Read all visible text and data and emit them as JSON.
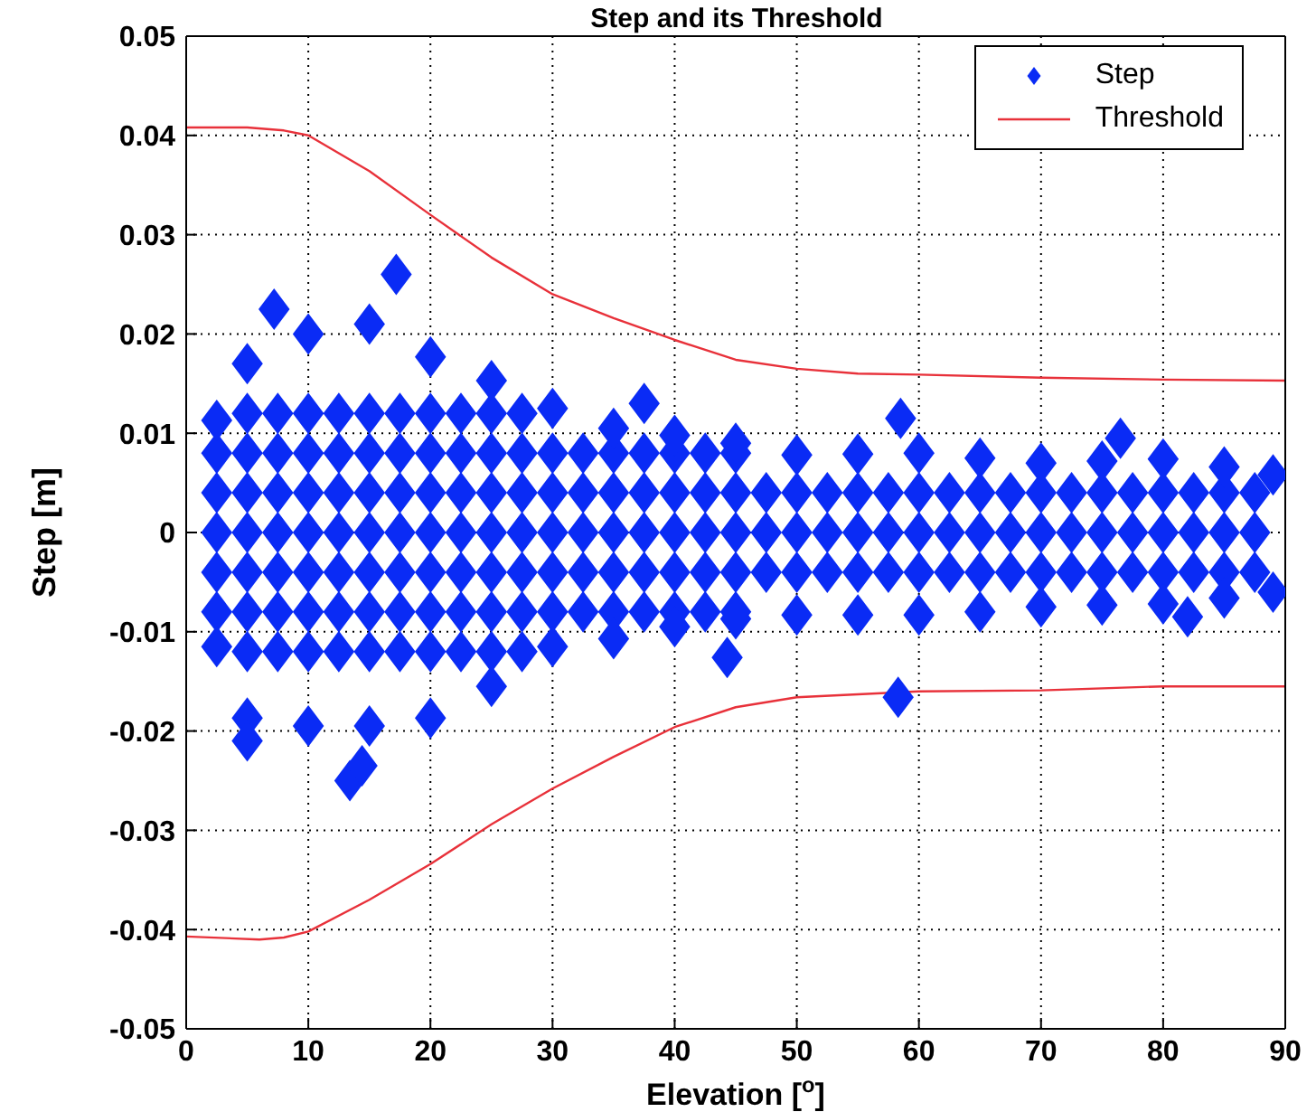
{
  "chart_data": {
    "type": "scatter",
    "title": "Step and its Threshold",
    "xlabel": "Elevation [$^{o}$]",
    "ylabel": "Step [m]",
    "xlim": [
      0,
      90
    ],
    "xticks": [
      0,
      10,
      20,
      30,
      40,
      50,
      60,
      70,
      80,
      90
    ],
    "ylim": [
      -0.05,
      0.05
    ],
    "yticks": [
      -0.05,
      -0.04,
      -0.03,
      -0.02,
      -0.01,
      0,
      0.01,
      0.02,
      0.03,
      0.04,
      0.05
    ],
    "grid": true,
    "legend": "top right",
    "series": [
      {
        "name": "Step",
        "marker": "diamond",
        "color": "#0a2bf5",
        "x": [
          5,
          7.5,
          10,
          12.5,
          15,
          17.5,
          20,
          22.5,
          25,
          27.5,
          2.5,
          5,
          7.5,
          10,
          12.5,
          15,
          17.5,
          20,
          22.5,
          25,
          27.5,
          30,
          32.5,
          35,
          37.5,
          40,
          42.5,
          45,
          2.5,
          5,
          7.5,
          10,
          12.5,
          15,
          17.5,
          20,
          22.5,
          25,
          27.5,
          30,
          32.5,
          35,
          37.5,
          40,
          42.5,
          45,
          47.5,
          50,
          52.5,
          55,
          57.5,
          60,
          62.5,
          65,
          67.5,
          70,
          72.5,
          75,
          77.5,
          80,
          82.5,
          85,
          87.5,
          2.5,
          5,
          7.5,
          10,
          12.5,
          15,
          17.5,
          20,
          22.5,
          25,
          27.5,
          30,
          32.5,
          35,
          37.5,
          40,
          42.5,
          45,
          47.5,
          50,
          52.5,
          55,
          57.5,
          60,
          62.5,
          65,
          67.5,
          70,
          72.5,
          75,
          77.5,
          80,
          82.5,
          85,
          87.5,
          2.5,
          5,
          7.5,
          10,
          12.5,
          15,
          17.5,
          20,
          22.5,
          25,
          27.5,
          30,
          32.5,
          35,
          37.5,
          40,
          42.5,
          45,
          47.5,
          50,
          52.5,
          55,
          57.5,
          60,
          62.5,
          65,
          67.5,
          70,
          72.5,
          75,
          77.5,
          80,
          82.5,
          85,
          87.5,
          2.5,
          5,
          7.5,
          10,
          12.5,
          15,
          17.5,
          20,
          22.5,
          25,
          27.5,
          30,
          32.5,
          35,
          37.5,
          40,
          42.5,
          45,
          5,
          7.5,
          10,
          12.5,
          15,
          17.5,
          20,
          22.5,
          25,
          27.5,
          2.5,
          5,
          10,
          15,
          20,
          25,
          30,
          35,
          40,
          45,
          50,
          55,
          60,
          65,
          70,
          75,
          80,
          85,
          89,
          2.5,
          5,
          10,
          15,
          20,
          25,
          30,
          35,
          40,
          45,
          50,
          55,
          60,
          65,
          70,
          75,
          80,
          85,
          89,
          17.2,
          7.2,
          37.5,
          58.5,
          76.5,
          13.4,
          14.4,
          5,
          44.3,
          58.3,
          82
        ],
        "values": [
          0.012,
          0.012,
          0.012,
          0.012,
          0.012,
          0.012,
          0.012,
          0.012,
          0.012,
          0.012,
          0.008,
          0.008,
          0.008,
          0.008,
          0.008,
          0.008,
          0.008,
          0.008,
          0.008,
          0.008,
          0.008,
          0.008,
          0.008,
          0.008,
          0.008,
          0.008,
          0.008,
          0.008,
          0.004,
          0.004,
          0.004,
          0.004,
          0.004,
          0.004,
          0.004,
          0.004,
          0.004,
          0.004,
          0.004,
          0.004,
          0.004,
          0.004,
          0.004,
          0.004,
          0.004,
          0.004,
          0.004,
          0.004,
          0.004,
          0.004,
          0.004,
          0.004,
          0.004,
          0.004,
          0.004,
          0.004,
          0.004,
          0.004,
          0.004,
          0.004,
          0.004,
          0.004,
          0.004,
          0,
          0,
          0,
          0,
          0,
          0,
          0,
          0,
          0,
          0,
          0,
          0,
          0,
          0,
          0,
          0,
          0,
          0,
          0,
          0,
          0,
          0,
          0,
          0,
          0,
          0,
          0,
          0,
          0,
          0,
          0,
          0,
          0,
          0,
          0,
          -0.004,
          -0.004,
          -0.004,
          -0.004,
          -0.004,
          -0.004,
          -0.004,
          -0.004,
          -0.004,
          -0.004,
          -0.004,
          -0.004,
          -0.004,
          -0.004,
          -0.004,
          -0.004,
          -0.004,
          -0.004,
          -0.004,
          -0.004,
          -0.004,
          -0.004,
          -0.004,
          -0.004,
          -0.004,
          -0.004,
          -0.004,
          -0.004,
          -0.004,
          -0.004,
          -0.004,
          -0.004,
          -0.004,
          -0.004,
          -0.004,
          -0.008,
          -0.008,
          -0.008,
          -0.008,
          -0.008,
          -0.008,
          -0.008,
          -0.008,
          -0.008,
          -0.008,
          -0.008,
          -0.008,
          -0.008,
          -0.008,
          -0.008,
          -0.008,
          -0.008,
          -0.008,
          -0.012,
          -0.012,
          -0.012,
          -0.012,
          -0.012,
          -0.012,
          -0.012,
          -0.012,
          -0.012,
          -0.012,
          0.0113,
          0.017,
          0.02,
          0.021,
          0.0177,
          0.0153,
          0.0125,
          0.0105,
          0.0098,
          0.009,
          0.0078,
          0.0079,
          0.008,
          0.0075,
          0.007,
          0.0072,
          0.0074,
          0.0066,
          0.0058,
          -0.0115,
          -0.0187,
          -0.0195,
          -0.0195,
          -0.0187,
          -0.0155,
          -0.0115,
          -0.0107,
          -0.0095,
          -0.0087,
          -0.0083,
          -0.0083,
          -0.0083,
          -0.008,
          -0.0075,
          -0.0073,
          -0.0072,
          -0.0066,
          -0.006,
          0.026,
          0.0225,
          0.013,
          0.0115,
          0.0095,
          -0.025,
          -0.0235,
          -0.021,
          -0.0126,
          -0.0166,
          -0.0085
        ]
      },
      {
        "name": "Threshold",
        "type": "line",
        "color": "#e8313a",
        "x": [
          0,
          5,
          8,
          10,
          15,
          20,
          25,
          30,
          35,
          40,
          45,
          50,
          55,
          60,
          70,
          80,
          90
        ],
        "values": [
          0.0408,
          0.0408,
          0.0405,
          0.04,
          0.0364,
          0.032,
          0.0277,
          0.024,
          0.0216,
          0.0194,
          0.0174,
          0.0165,
          0.016,
          0.0159,
          0.0156,
          0.0154,
          0.0153
        ]
      },
      {
        "type": "line",
        "color": "#e8313a",
        "x": [
          0,
          6,
          8,
          10,
          15,
          20,
          25,
          30,
          35,
          40,
          45,
          50,
          60,
          70,
          80,
          90
        ],
        "values": [
          -0.0407,
          -0.041,
          -0.0408,
          -0.0402,
          -0.037,
          -0.0334,
          -0.0294,
          -0.0258,
          -0.0226,
          -0.0196,
          -0.0176,
          -0.0166,
          -0.016,
          -0.0159,
          -0.0155,
          -0.0155
        ]
      }
    ]
  }
}
